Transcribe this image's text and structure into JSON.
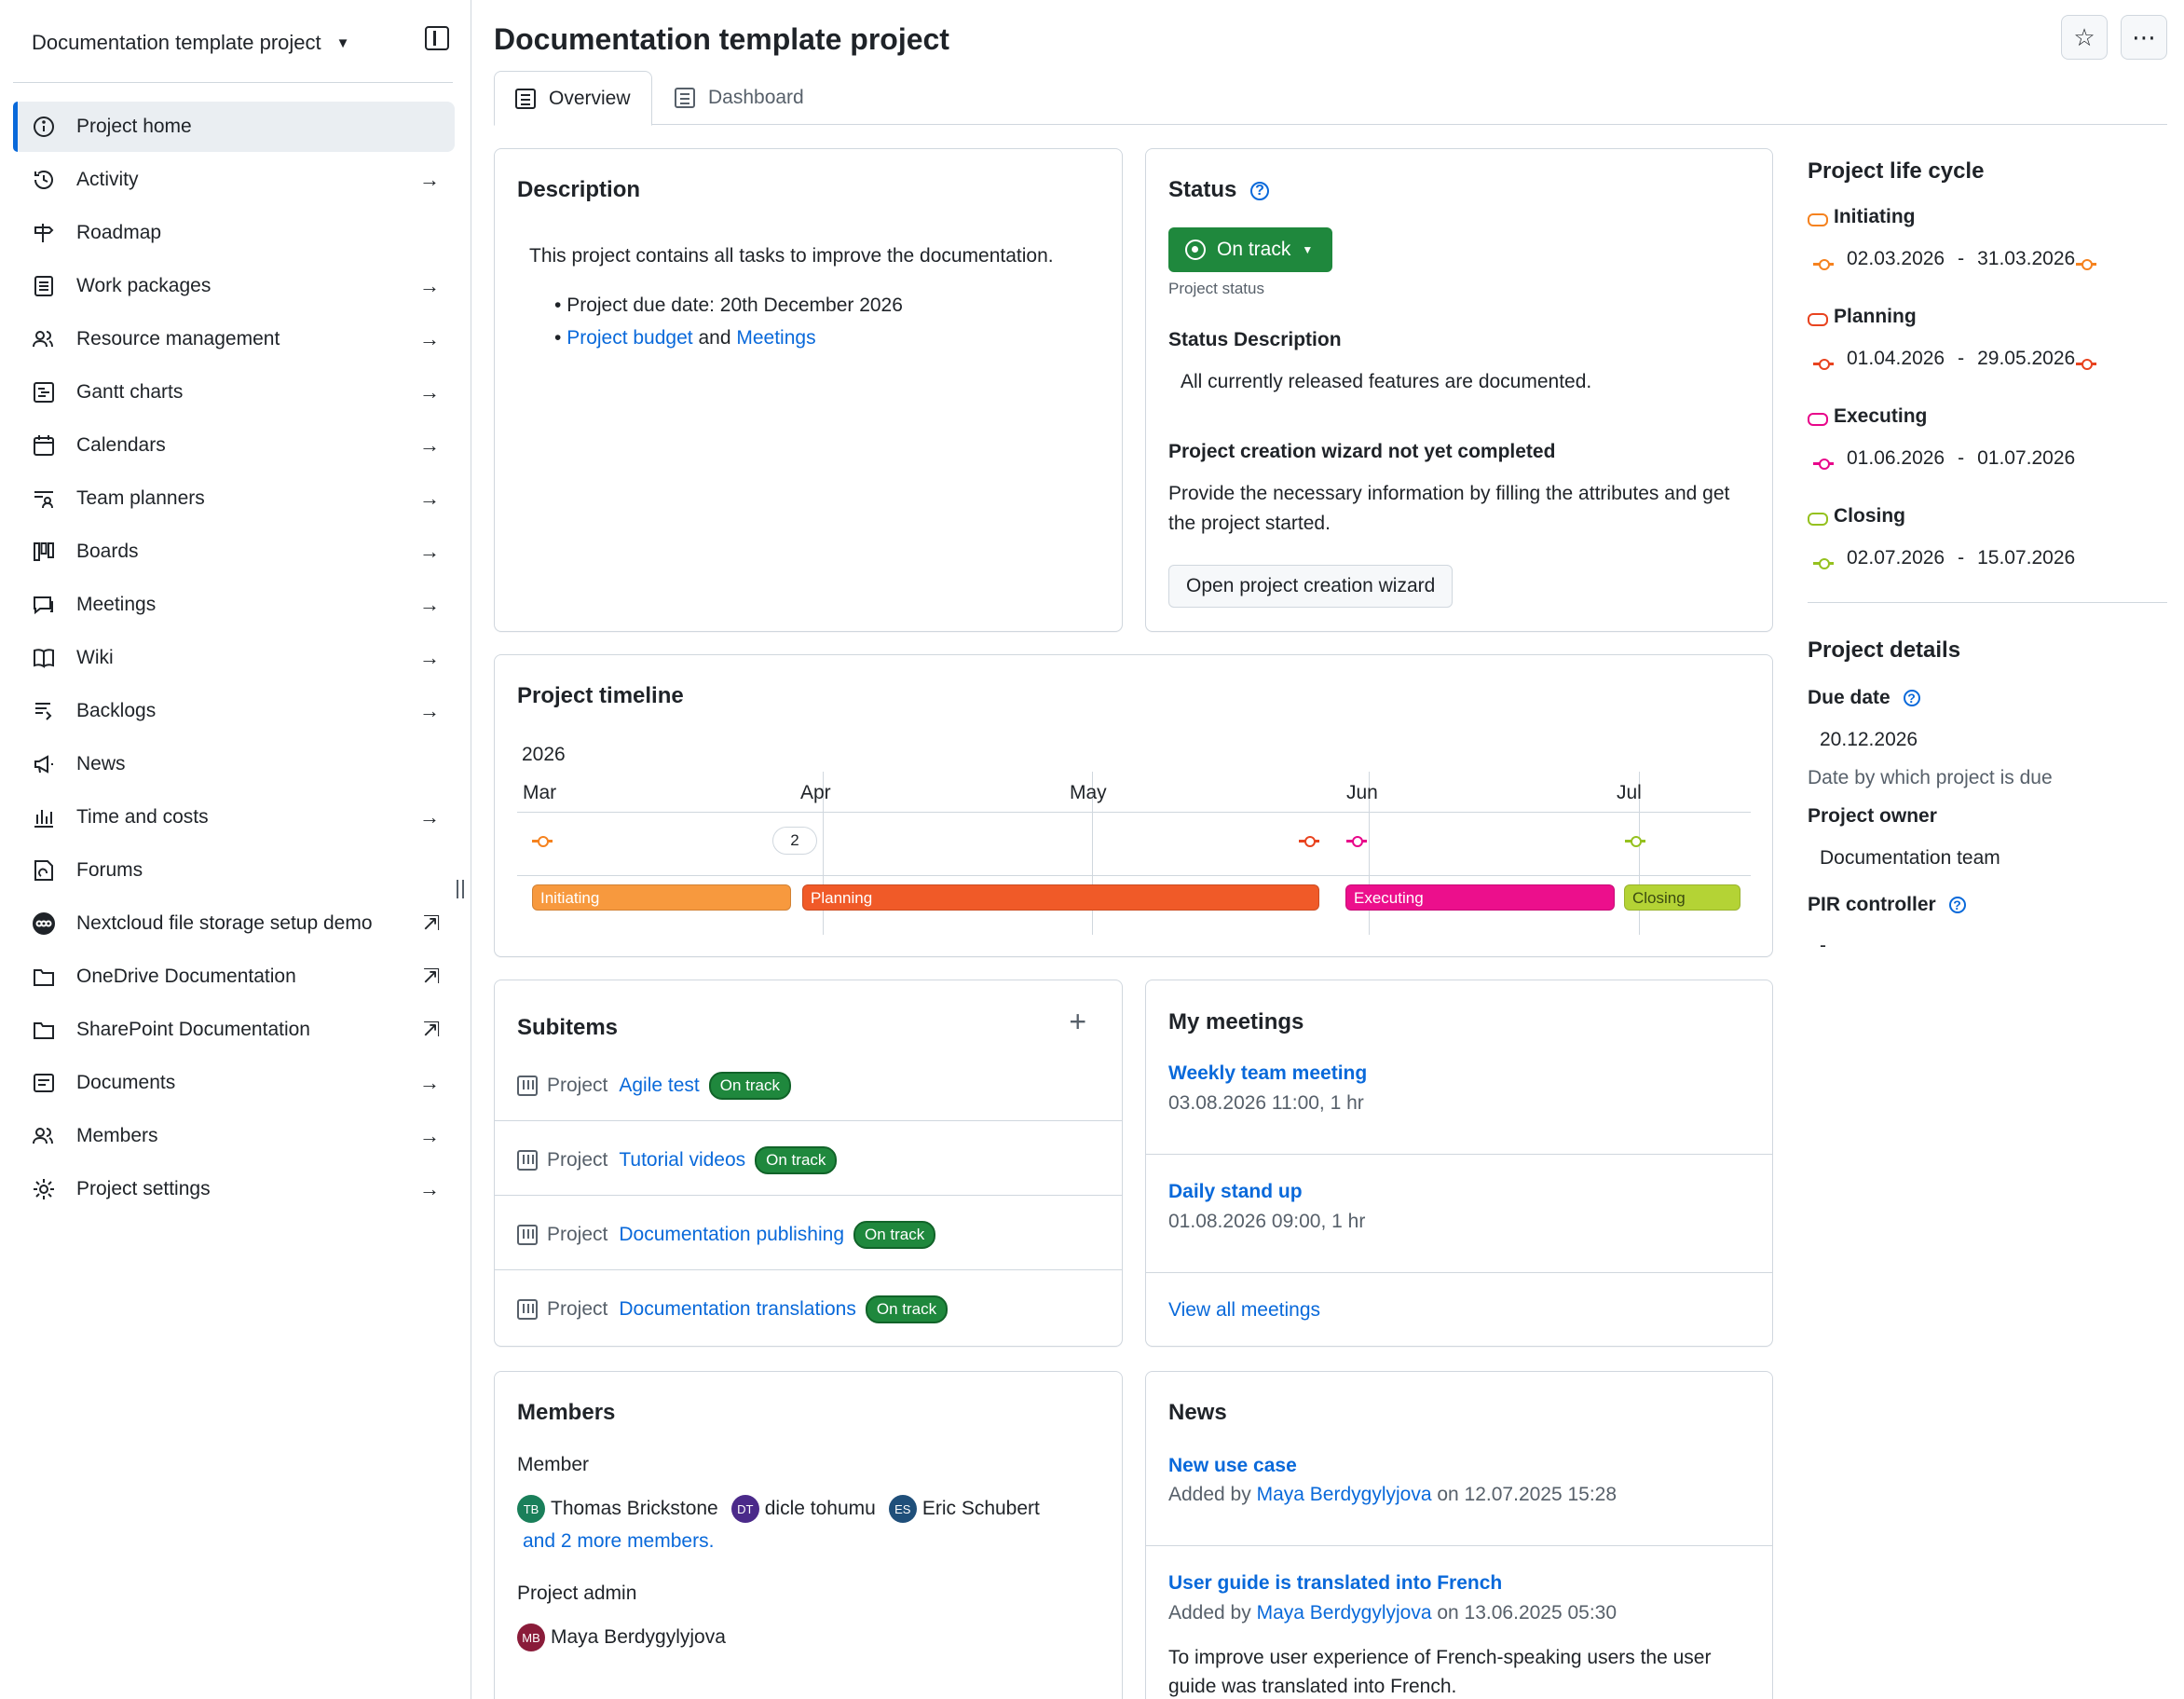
{
  "sidebar": {
    "project_name": "Documentation template project",
    "items": [
      {
        "label": "Project home",
        "icon": "info-icon",
        "arrow": false,
        "external": false
      },
      {
        "label": "Activity",
        "icon": "history-icon",
        "arrow": true,
        "external": false
      },
      {
        "label": "Roadmap",
        "icon": "milestone-icon",
        "arrow": false,
        "external": false
      },
      {
        "label": "Work packages",
        "icon": "list-icon",
        "arrow": true,
        "external": false
      },
      {
        "label": "Resource management",
        "icon": "people-icon",
        "arrow": true,
        "external": false
      },
      {
        "label": "Gantt charts",
        "icon": "gantt-icon",
        "arrow": true,
        "external": false
      },
      {
        "label": "Calendars",
        "icon": "calendar-icon",
        "arrow": true,
        "external": false
      },
      {
        "label": "Team planners",
        "icon": "team-planner-icon",
        "arrow": true,
        "external": false
      },
      {
        "label": "Boards",
        "icon": "board-icon",
        "arrow": true,
        "external": false
      },
      {
        "label": "Meetings",
        "icon": "comment-icon",
        "arrow": true,
        "external": false
      },
      {
        "label": "Wiki",
        "icon": "book-icon",
        "arrow": true,
        "external": false
      },
      {
        "label": "Backlogs",
        "icon": "backlog-icon",
        "arrow": true,
        "external": false
      },
      {
        "label": "News",
        "icon": "megaphone-icon",
        "arrow": false,
        "external": false
      },
      {
        "label": "Time and costs",
        "icon": "bar-chart-icon",
        "arrow": true,
        "external": false
      },
      {
        "label": "Forums",
        "icon": "forum-icon",
        "arrow": false,
        "external": false
      },
      {
        "label": "Nextcloud file storage setup demo",
        "icon": "nextcloud-icon",
        "arrow": false,
        "external": true
      },
      {
        "label": "OneDrive Documentation",
        "icon": "folder-icon",
        "arrow": false,
        "external": true
      },
      {
        "label": "SharePoint Documentation",
        "icon": "folder-icon",
        "arrow": false,
        "external": true
      },
      {
        "label": "Documents",
        "icon": "document-icon",
        "arrow": true,
        "external": false
      },
      {
        "label": "Members",
        "icon": "people-icon",
        "arrow": true,
        "external": false
      },
      {
        "label": "Project settings",
        "icon": "gear-icon",
        "arrow": true,
        "external": false
      }
    ]
  },
  "header": {
    "title": "Documentation template project",
    "tabs": [
      "Overview",
      "Dashboard"
    ],
    "more": "⋯",
    "star": "☆"
  },
  "description": {
    "title": "Description",
    "text": "This project contains all tasks to improve the documentation.",
    "bullet1": "Project due date: 20th December 2026",
    "link1": "Project budget",
    "and": "and",
    "link2": "Meetings"
  },
  "status": {
    "title": "Status",
    "button": "On track",
    "button_caption": "Project status",
    "desc_title": "Status Description",
    "desc_text": "All currently released features are documented.",
    "wizard_title": "Project creation wizard not yet completed",
    "wizard_text_1": "Provide the necessary information by filling the attributes and get",
    "wizard_text_2": "the project started.",
    "wizard_button": "Open project creation wizard",
    "color": "#1f883d"
  },
  "lifecycle": {
    "title": "Project life cycle",
    "phases": [
      {
        "name": "Initiating",
        "start": "02.03.2026",
        "sep": "-",
        "end": "31.03.2026",
        "color": "#f5821f",
        "end_marker": true
      },
      {
        "name": "Planning",
        "start": "01.04.2026",
        "sep": "-",
        "end": "29.05.2026",
        "color": "#e8431f",
        "end_marker": true
      },
      {
        "name": "Executing",
        "start": "01.06.2026",
        "sep": "-",
        "end": "01.07.2026",
        "color": "#e8068a",
        "end_marker": false
      },
      {
        "name": "Closing",
        "start": "02.07.2026",
        "sep": "-",
        "end": "15.07.2026",
        "color": "#95c11f",
        "end_marker": false
      }
    ]
  },
  "details": {
    "title": "Project details",
    "due_label": "Due date",
    "due_value": "20.12.2026",
    "due_caption": "Date by which project is due",
    "owner_label": "Project owner",
    "owner_value": "Documentation team",
    "pir_label": "PIR controller",
    "pir_value": "-"
  },
  "timeline": {
    "title": "Project timeline",
    "year": "2026",
    "months": [
      "Mar",
      "Apr",
      "May",
      "Jun",
      "Jul"
    ],
    "count_badge": "2",
    "bars": [
      {
        "label": "Initiating",
        "color": "#f7993e"
      },
      {
        "label": "Planning",
        "color": "#f05a28"
      },
      {
        "label": "Executing",
        "color": "#ec0f8c"
      },
      {
        "label": "Closing",
        "color": "#b4d335"
      }
    ]
  },
  "subitems": {
    "title": "Subitems",
    "add": "+",
    "rows": [
      {
        "type": "Project",
        "name": "Agile test",
        "status": "On track"
      },
      {
        "type": "Project",
        "name": "Tutorial videos",
        "status": "On track"
      },
      {
        "type": "Project",
        "name": "Documentation publishing",
        "status": "On track"
      },
      {
        "type": "Project",
        "name": "Documentation translations",
        "status": "On track"
      }
    ]
  },
  "meetings": {
    "title": "My meetings",
    "items": [
      {
        "name": "Weekly team meeting",
        "when": "03.08.2026 11:00, 1 hr"
      },
      {
        "name": "Daily stand up",
        "when": "01.08.2026 09:00, 1 hr"
      }
    ],
    "view_all": "View all meetings"
  },
  "members": {
    "title": "Members",
    "member_label": "Member",
    "members": [
      {
        "initials": "TB",
        "name": "Thomas Brickstone",
        "color": "#1a7f5a"
      },
      {
        "initials": "DT",
        "name": "dicle tohumu",
        "color": "#4b2a8a"
      },
      {
        "initials": "ES",
        "name": "Eric Schubert",
        "color": "#1f4f7a"
      }
    ],
    "more": "and 2 more members.",
    "admin_label": "Project admin",
    "admin": {
      "initials": "MB",
      "name": "Maya Berdygylyjova",
      "color": "#8a1c3a"
    }
  },
  "news": {
    "title": "News",
    "items": [
      {
        "title": "New use case",
        "added_by": "Added by",
        "author": "Maya Berdygylyjova",
        "on": "on 12.07.2025 15:28"
      },
      {
        "title": "User guide is translated into French",
        "added_by": "Added by",
        "author": "Maya Berdygylyjova",
        "on": "on 13.06.2025 05:30"
      }
    ],
    "body_1": "To improve user experience of French-speaking users the user",
    "body_2": "guide was translated into French."
  }
}
